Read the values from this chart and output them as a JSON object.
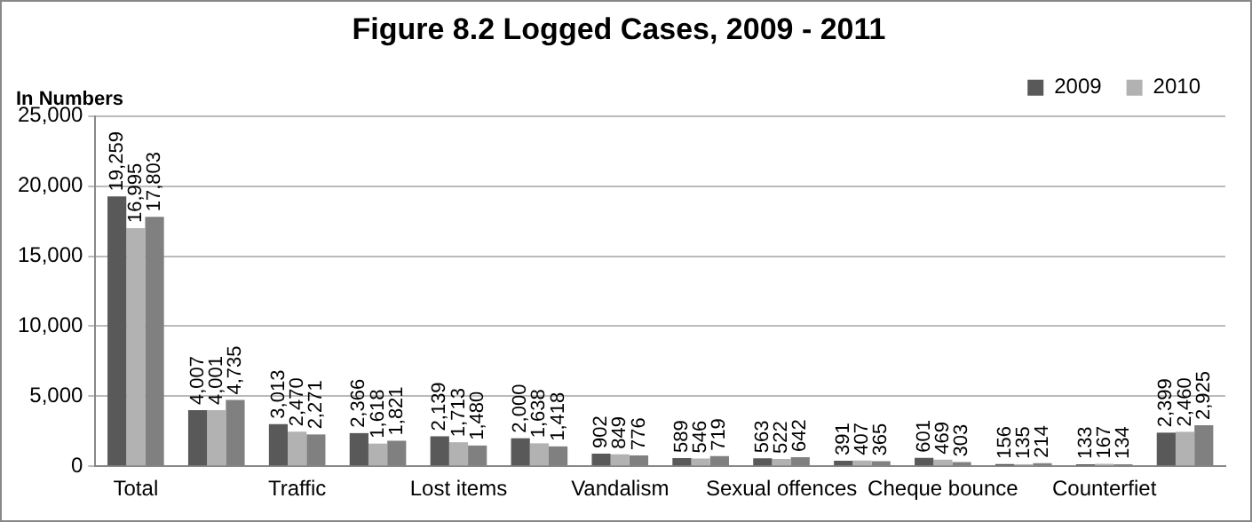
{
  "chart_data": {
    "type": "bar",
    "title": "Figure 8.2 Logged Cases, 2009 - 2011",
    "ylabel": "In Numbers",
    "categories": [
      "Total",
      null,
      "Traffic",
      null,
      "Lost items",
      null,
      "Vandalism",
      null,
      "Sexual offences",
      null,
      "Cheque bounce",
      null,
      "Counterfiet",
      null
    ],
    "series": [
      {
        "name": "2009",
        "color": "#595959",
        "values": [
          19259,
          4007,
          3013,
          2366,
          2139,
          2000,
          902,
          589,
          563,
          391,
          601,
          156,
          133,
          2399
        ],
        "value_labels": [
          "19,259",
          "4,007",
          "3,013",
          "2,366",
          "2,139",
          "2,000",
          "902",
          "589",
          "563",
          "391",
          "601",
          "156",
          "133",
          "2,399"
        ]
      },
      {
        "name": "2010",
        "color": "#b2b2b2",
        "values": [
          16995,
          4001,
          2470,
          1618,
          1713,
          1638,
          849,
          546,
          522,
          407,
          469,
          135,
          167,
          2460
        ],
        "value_labels": [
          "16,995",
          "4,001",
          "2,470",
          "1,618",
          "1,713",
          "1,638",
          "849",
          "546",
          "522",
          "407",
          "469",
          "135",
          "167",
          "2,460"
        ]
      },
      {
        "color": "#808080",
        "values": [
          17803,
          4735,
          2271,
          1821,
          1480,
          1418,
          776,
          719,
          642,
          365,
          303,
          214,
          134,
          2925
        ],
        "value_labels": [
          "17,803",
          "4,735",
          "2,271",
          "1,821",
          "1,480",
          "1,418",
          "776",
          "719",
          "642",
          "365",
          "303",
          "214",
          "134",
          "2,925"
        ]
      }
    ],
    "ylim": [
      0,
      25000
    ],
    "yticks": [
      0,
      {
        "value": 5000,
        "label": "5,000"
      },
      {
        "value": 10000,
        "label": "10,000"
      },
      {
        "value": 15000,
        "label": "15,000"
      },
      {
        "value": 20000,
        "label": "20,000"
      },
      {
        "value": 25000,
        "label": "25,000"
      }
    ],
    "grid": "y",
    "legend": "top right"
  }
}
